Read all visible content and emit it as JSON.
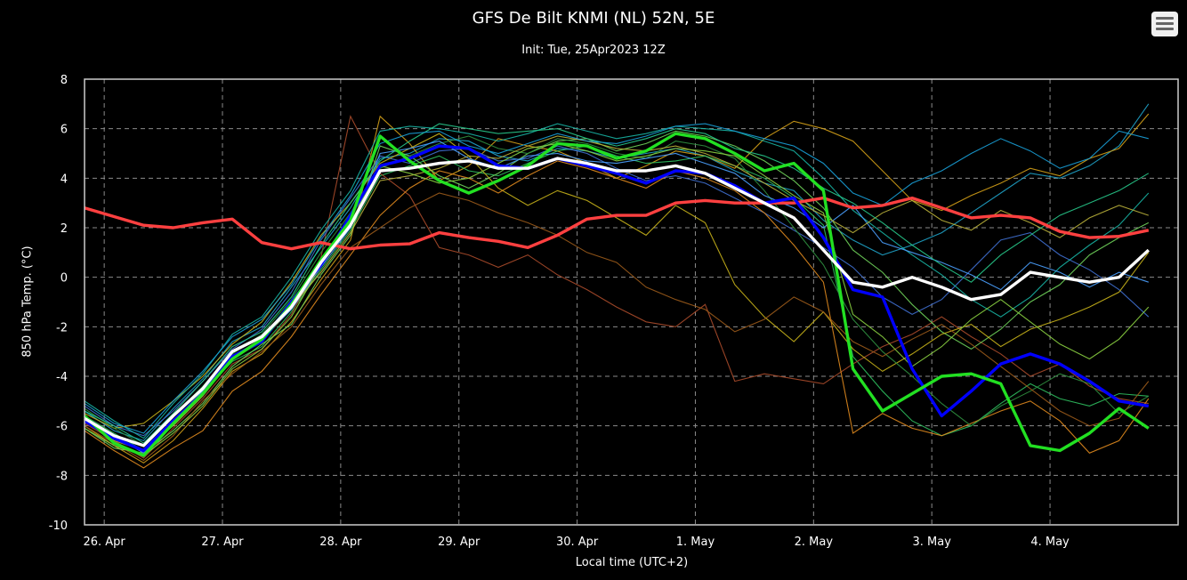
{
  "chart_data": {
    "type": "line",
    "title": "GFS De Bilt KNMI (NL) 52N, 5E",
    "subtitle": "Init: Tue, 25Apr2023 12Z",
    "ylabel": "850 hPa Temp. (°C)",
    "xlabel": "Local time (UTC+2)",
    "ylim": [
      -10,
      8
    ],
    "yticks": [
      -10,
      -8,
      -6,
      -4,
      -2,
      0,
      2,
      4,
      6,
      8
    ],
    "x_tick_labels": [
      "26. Apr",
      "27. Apr",
      "28. Apr",
      "29. Apr",
      "30. Apr",
      "1. May",
      "2. May",
      "3. May",
      "4. May"
    ],
    "x_start_hours": -4,
    "x_step_hours": 6,
    "grid": true,
    "main_series": [
      {
        "name": "",
        "color": "#ff4040",
        "values": [
          2.8,
          2.45,
          2.1,
          2.0,
          2.2,
          2.35,
          1.4,
          1.15,
          1.4,
          1.15,
          1.3,
          1.35,
          1.8,
          1.6,
          1.45,
          1.2,
          1.7,
          2.35,
          2.5,
          2.5,
          3.0,
          3.1,
          3.0,
          3.0,
          3.0,
          3.2,
          2.8,
          2.9,
          3.2,
          2.8,
          2.4,
          2.5,
          2.4,
          1.85,
          1.6,
          1.65,
          1.9
        ]
      },
      {
        "name": "",
        "color": "#0000ff",
        "values": [
          -5.8,
          -6.5,
          -7.0,
          -5.8,
          -4.7,
          -3.2,
          -2.6,
          -1.0,
          0.5,
          2.5,
          4.5,
          4.8,
          5.3,
          5.2,
          4.5,
          4.4,
          4.8,
          4.5,
          4.2,
          3.8,
          4.3,
          4.2,
          3.7,
          3.0,
          3.2,
          1.6,
          -0.5,
          -0.8,
          -3.7,
          -5.6,
          -4.6,
          -3.5,
          -3.1,
          -3.5,
          -4.2,
          -5.0,
          -5.2
        ]
      },
      {
        "name": "",
        "color": "#22e022",
        "values": [
          -5.6,
          -6.7,
          -7.2,
          -5.9,
          -4.7,
          -3.3,
          -2.5,
          -1.1,
          0.7,
          2.3,
          5.7,
          4.7,
          3.9,
          3.4,
          3.9,
          4.5,
          5.4,
          5.3,
          4.8,
          5.1,
          5.8,
          5.6,
          5.0,
          4.3,
          4.6,
          3.5,
          -3.7,
          -5.4,
          -4.7,
          -4.0,
          -3.9,
          -4.3,
          -6.8,
          -7.0,
          -6.3,
          -5.3,
          -6.1
        ]
      },
      {
        "name": "",
        "color": "#ffffff",
        "values": [
          -5.7,
          -6.4,
          -6.8,
          -5.6,
          -4.5,
          -3.0,
          -2.4,
          -1.2,
          0.6,
          2.1,
          4.3,
          4.4,
          4.6,
          4.7,
          4.4,
          4.4,
          4.8,
          4.6,
          4.3,
          4.3,
          4.5,
          4.2,
          3.6,
          3.0,
          2.4,
          1.1,
          -0.2,
          -0.4,
          0.0,
          -0.4,
          -0.9,
          -0.7,
          0.2,
          0.0,
          -0.2,
          0.0,
          1.1
        ]
      }
    ],
    "ensemble_members": [
      {
        "color": "#1fa3c9",
        "values": [
          -5.4,
          -6.2,
          -6.6,
          -5.3,
          -4.1,
          -2.6,
          -2.0,
          -0.4,
          1.2,
          2.8,
          4.8,
          5.0,
          5.6,
          5.5,
          4.9,
          4.7,
          5.2,
          5.1,
          4.8,
          5.0,
          5.2,
          4.9,
          4.3,
          3.8,
          3.5,
          2.3,
          1.5,
          0.9,
          1.3,
          1.8,
          2.6,
          3.4,
          4.2,
          4.0,
          4.5,
          5.3,
          7.0
        ]
      },
      {
        "color": "#d4a017",
        "values": [
          -6.0,
          -6.8,
          -7.5,
          -6.6,
          -5.3,
          -3.8,
          -3.1,
          -1.8,
          -0.1,
          1.5,
          6.5,
          5.4,
          3.9,
          4.5,
          5.6,
          5.3,
          5.1,
          4.6,
          4.0,
          4.5,
          5.1,
          4.9,
          4.4,
          5.6,
          6.3,
          6.0,
          5.5,
          4.3,
          3.1,
          2.7,
          3.3,
          3.8,
          4.4,
          4.1,
          4.8,
          5.2,
          6.6
        ]
      },
      {
        "color": "#2fbf5f",
        "values": [
          -5.6,
          -6.3,
          -7.0,
          -5.9,
          -4.6,
          -3.4,
          -2.8,
          -1.4,
          0.3,
          1.9,
          4.1,
          4.5,
          4.9,
          4.3,
          4.1,
          4.6,
          5.1,
          5.3,
          4.9,
          4.6,
          4.7,
          4.9,
          4.5,
          4.0,
          3.2,
          2.1,
          -3.2,
          -4.6,
          -5.8,
          -6.4,
          -6.0,
          -5.1,
          -4.3,
          -4.9,
          -5.2,
          -4.7,
          -4.8
        ]
      },
      {
        "color": "#a84a2a",
        "values": [
          -5.9,
          -6.6,
          -7.3,
          -6.1,
          -4.9,
          -3.5,
          -2.9,
          -1.5,
          0.8,
          6.5,
          4.2,
          3.3,
          1.2,
          0.9,
          0.4,
          0.9,
          0.1,
          -0.5,
          -1.2,
          -1.8,
          -2.0,
          -1.1,
          -4.2,
          -3.9,
          -4.1,
          -4.3,
          -3.5,
          -2.8,
          -2.3,
          -1.6,
          -2.4,
          -3.1,
          -4.0,
          -3.5,
          -4.4,
          -4.9,
          -5.1
        ]
      },
      {
        "color": "#3f6fd0",
        "values": [
          -5.2,
          -6.0,
          -6.4,
          -5.4,
          -4.2,
          -2.9,
          -2.1,
          -0.6,
          1.5,
          3.2,
          4.9,
          4.6,
          5.1,
          5.2,
          4.7,
          4.8,
          5.3,
          5.0,
          4.4,
          3.9,
          4.1,
          3.8,
          3.2,
          2.6,
          1.9,
          1.2,
          0.4,
          -0.8,
          -1.5,
          -0.9,
          0.3,
          1.5,
          1.8,
          0.9,
          0.3,
          -0.5,
          -1.6
        ]
      },
      {
        "color": "#6fd35a",
        "values": [
          -6.1,
          -6.9,
          -7.1,
          -6.2,
          -5.1,
          -3.6,
          -2.7,
          -1.9,
          0.1,
          1.7,
          5.3,
          4.9,
          4.1,
          3.6,
          4.2,
          5.0,
          5.5,
          5.6,
          5.1,
          5.4,
          5.9,
          5.7,
          5.3,
          4.7,
          3.9,
          2.8,
          1.1,
          0.2,
          -1.1,
          -2.2,
          -2.9,
          -2.1,
          -1.0,
          -0.3,
          0.9,
          1.6,
          2.2
        ]
      },
      {
        "color": "#c8b21a",
        "values": [
          -5.5,
          -6.1,
          -5.9,
          -5.0,
          -4.0,
          -2.7,
          -1.8,
          -0.2,
          1.7,
          3.0,
          4.6,
          5.2,
          5.8,
          4.9,
          3.6,
          2.9,
          3.5,
          3.1,
          2.4,
          1.7,
          2.9,
          2.2,
          -0.3,
          -1.6,
          -2.6,
          -1.4,
          -2.9,
          -3.8,
          -3.1,
          -2.3,
          -1.9,
          -2.8,
          -2.1,
          -1.7,
          -1.2,
          -0.6,
          1.0
        ]
      },
      {
        "color": "#17b3a3",
        "values": [
          -5.0,
          -5.8,
          -6.5,
          -5.1,
          -3.9,
          -2.3,
          -1.6,
          0.0,
          1.9,
          3.5,
          5.9,
          6.1,
          6.0,
          5.8,
          5.5,
          5.8,
          6.2,
          5.9,
          5.6,
          5.8,
          6.1,
          6.0,
          5.9,
          5.5,
          5.1,
          4.0,
          2.7,
          1.8,
          0.9,
          0.1,
          -0.9,
          -1.6,
          -0.8,
          0.4,
          1.3,
          2.1,
          3.4
        ]
      },
      {
        "color": "#e08a1e",
        "values": [
          -6.2,
          -7.0,
          -7.7,
          -6.9,
          -6.2,
          -4.6,
          -3.8,
          -2.4,
          -0.7,
          0.9,
          2.5,
          3.6,
          4.3,
          4.0,
          3.4,
          4.1,
          4.7,
          4.4,
          4.0,
          3.6,
          4.3,
          4.0,
          3.5,
          2.6,
          1.3,
          -0.2,
          -6.3,
          -5.5,
          -6.1,
          -6.4,
          -5.9,
          -5.4,
          -5.0,
          -5.8,
          -7.1,
          -6.6,
          -4.9
        ]
      },
      {
        "color": "#2f8f3f",
        "values": [
          -5.3,
          -6.1,
          -6.8,
          -5.6,
          -4.4,
          -3.1,
          -2.3,
          -0.9,
          1.0,
          2.6,
          4.4,
          4.9,
          5.4,
          5.7,
          5.2,
          5.0,
          5.6,
          5.4,
          5.0,
          4.8,
          5.5,
          5.3,
          4.8,
          3.5,
          2.0,
          0.5,
          -1.7,
          -3.0,
          -4.0,
          -5.1,
          -6.0,
          -5.2,
          -4.6,
          -3.9,
          -4.3,
          -5.5,
          -4.8
        ]
      },
      {
        "color": "#4aa0ff",
        "values": [
          -5.7,
          -6.4,
          -7.1,
          -5.8,
          -4.6,
          -3.2,
          -2.5,
          -1.3,
          0.4,
          2.0,
          5.0,
          5.2,
          5.5,
          4.8,
          4.4,
          4.9,
          5.0,
          4.7,
          4.6,
          4.8,
          5.0,
          4.6,
          4.2,
          3.3,
          2.8,
          2.0,
          2.9,
          1.4,
          1.0,
          0.6,
          0.1,
          -0.5,
          0.6,
          0.2,
          -0.4,
          0.2,
          -0.2
        ]
      },
      {
        "color": "#b9b03a",
        "values": [
          -5.8,
          -6.6,
          -7.0,
          -6.0,
          -4.8,
          -3.3,
          -2.6,
          -1.2,
          0.2,
          1.8,
          3.9,
          4.1,
          4.4,
          4.9,
          4.8,
          5.3,
          5.7,
          5.5,
          5.2,
          5.1,
          5.3,
          5.0,
          4.5,
          3.8,
          3.1,
          2.5,
          1.8,
          2.6,
          3.1,
          2.3,
          1.9,
          2.7,
          2.2,
          1.6,
          2.4,
          2.9,
          2.5
        ]
      },
      {
        "color": "#27c98b",
        "values": [
          -5.4,
          -6.0,
          -6.7,
          -5.5,
          -4.2,
          -2.8,
          -2.2,
          -0.8,
          1.3,
          3.0,
          4.7,
          5.5,
          6.2,
          6.0,
          5.8,
          5.9,
          6.0,
          5.6,
          5.3,
          5.6,
          6.0,
          5.8,
          5.2,
          4.9,
          4.4,
          3.6,
          3.0,
          2.2,
          1.3,
          0.5,
          -0.2,
          0.9,
          1.7,
          2.5,
          3.0,
          3.5,
          4.2
        ]
      },
      {
        "color": "#9a5a1a",
        "values": [
          -6.0,
          -6.7,
          -7.4,
          -6.4,
          -5.0,
          -3.9,
          -3.0,
          -2.0,
          -0.3,
          1.2,
          2.0,
          2.8,
          3.4,
          3.1,
          2.6,
          2.2,
          1.7,
          1.0,
          0.6,
          -0.4,
          -0.9,
          -1.3,
          -2.2,
          -1.7,
          -0.8,
          -1.4,
          -2.6,
          -3.2,
          -2.5,
          -1.9,
          -2.7,
          -3.6,
          -4.5,
          -5.4,
          -6.0,
          -5.7,
          -4.2
        ]
      },
      {
        "color": "#18a0d8",
        "values": [
          -5.1,
          -5.9,
          -6.3,
          -5.0,
          -3.8,
          -2.4,
          -1.7,
          -0.3,
          1.6,
          3.3,
          5.4,
          5.8,
          5.9,
          5.3,
          5.0,
          5.4,
          5.8,
          5.5,
          5.4,
          5.7,
          6.1,
          6.2,
          5.9,
          5.6,
          5.3,
          4.6,
          3.4,
          2.9,
          3.8,
          4.3,
          5.0,
          5.6,
          5.1,
          4.4,
          4.8,
          5.9,
          5.6
        ]
      },
      {
        "color": "#8ad040",
        "values": [
          -6.1,
          -6.8,
          -7.2,
          -6.3,
          -5.2,
          -3.7,
          -2.9,
          -1.6,
          0.5,
          2.2,
          4.5,
          4.2,
          3.8,
          4.0,
          4.6,
          5.2,
          5.4,
          5.1,
          4.7,
          4.9,
          5.2,
          5.1,
          4.9,
          4.1,
          3.3,
          2.6,
          -1.5,
          -2.4,
          -3.6,
          -2.8,
          -1.7,
          -0.9,
          -1.8,
          -2.7,
          -3.3,
          -2.5,
          -1.2
        ]
      }
    ]
  }
}
